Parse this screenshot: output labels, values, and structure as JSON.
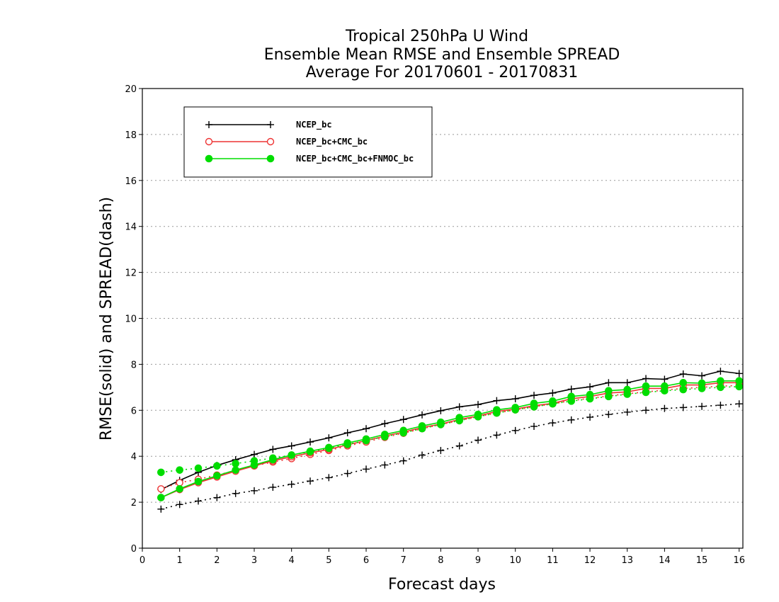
{
  "chart_data": {
    "type": "line",
    "title": [
      "Tropical 250hPa U Wind",
      "Ensemble Mean RMSE and Ensemble SPREAD",
      "Average For 20170601 - 20170831"
    ],
    "xlabel": "Forecast days",
    "ylabel": "RMSE(solid) and SPREAD(dash)",
    "xlim": [
      0,
      16.1
    ],
    "ylim": [
      0,
      20
    ],
    "xticks": [
      0,
      1,
      2,
      3,
      4,
      5,
      6,
      7,
      8,
      9,
      10,
      11,
      12,
      13,
      14,
      15,
      16
    ],
    "yticks": [
      0,
      2,
      4,
      6,
      8,
      10,
      12,
      14,
      16,
      18,
      20
    ],
    "grid": "horizontal dotted",
    "legend_position": "top-left",
    "x": [
      0.5,
      1,
      1.5,
      2,
      2.5,
      3,
      3.5,
      4,
      4.5,
      5,
      5.5,
      6,
      6.5,
      7,
      7.5,
      8,
      8.5,
      9,
      9.5,
      10,
      10.5,
      11,
      11.5,
      12,
      12.5,
      13,
      13.5,
      14,
      14.5,
      15,
      15.5,
      16
    ],
    "series": [
      {
        "name": "NCEP_bc",
        "color": "#000000",
        "marker": "plus",
        "rmse": [
          2.55,
          2.95,
          3.3,
          3.6,
          3.85,
          4.08,
          4.3,
          4.45,
          4.62,
          4.8,
          5.02,
          5.2,
          5.42,
          5.6,
          5.8,
          5.98,
          6.15,
          6.25,
          6.42,
          6.5,
          6.65,
          6.75,
          6.92,
          7.02,
          7.2,
          7.2,
          7.38,
          7.35,
          7.58,
          7.5,
          7.7,
          7.6
        ],
        "spread": [
          1.7,
          1.9,
          2.05,
          2.2,
          2.38,
          2.5,
          2.65,
          2.78,
          2.92,
          3.07,
          3.25,
          3.44,
          3.62,
          3.8,
          4.05,
          4.25,
          4.45,
          4.7,
          4.92,
          5.12,
          5.3,
          5.45,
          5.58,
          5.7,
          5.82,
          5.92,
          6.0,
          6.08,
          6.12,
          6.17,
          6.22,
          6.28
        ]
      },
      {
        "name": "NCEP_bc+CMC_bc",
        "color": "#ee3333",
        "marker": "open-circle",
        "rmse": [
          2.2,
          2.55,
          2.85,
          3.1,
          3.35,
          3.58,
          3.8,
          3.98,
          4.15,
          4.3,
          4.5,
          4.68,
          4.88,
          5.05,
          5.25,
          5.4,
          5.6,
          5.75,
          5.95,
          6.05,
          6.2,
          6.3,
          6.5,
          6.6,
          6.75,
          6.8,
          6.95,
          6.95,
          7.1,
          7.1,
          7.2,
          7.2
        ],
        "spread": [
          2.58,
          2.85,
          3.0,
          3.18,
          3.38,
          3.58,
          3.75,
          3.9,
          4.08,
          4.25,
          4.45,
          4.62,
          4.82,
          5.0,
          5.2,
          5.38,
          5.55,
          5.72,
          5.88,
          6.02,
          6.15,
          6.28,
          6.42,
          6.52,
          6.62,
          6.72,
          6.8,
          6.88,
          6.95,
          7.0,
          7.05,
          7.08
        ]
      },
      {
        "name": "NCEP_bc+CMC_bc+FNMOC_bc",
        "color": "#00dd00",
        "marker": "filled-circle",
        "rmse": [
          2.2,
          2.58,
          2.9,
          3.15,
          3.4,
          3.62,
          3.85,
          4.05,
          4.22,
          4.38,
          4.58,
          4.75,
          4.95,
          5.12,
          5.32,
          5.48,
          5.68,
          5.82,
          6.02,
          6.12,
          6.3,
          6.4,
          6.6,
          6.68,
          6.85,
          6.9,
          7.05,
          7.05,
          7.2,
          7.18,
          7.28,
          7.28
        ],
        "spread": [
          3.3,
          3.4,
          3.48,
          3.58,
          3.68,
          3.8,
          3.92,
          4.05,
          4.2,
          4.35,
          4.52,
          4.68,
          4.85,
          5.02,
          5.2,
          5.38,
          5.55,
          5.72,
          5.88,
          6.02,
          6.15,
          6.28,
          6.4,
          6.5,
          6.6,
          6.7,
          6.78,
          6.85,
          6.9,
          6.95,
          7.0,
          7.03
        ]
      }
    ]
  }
}
